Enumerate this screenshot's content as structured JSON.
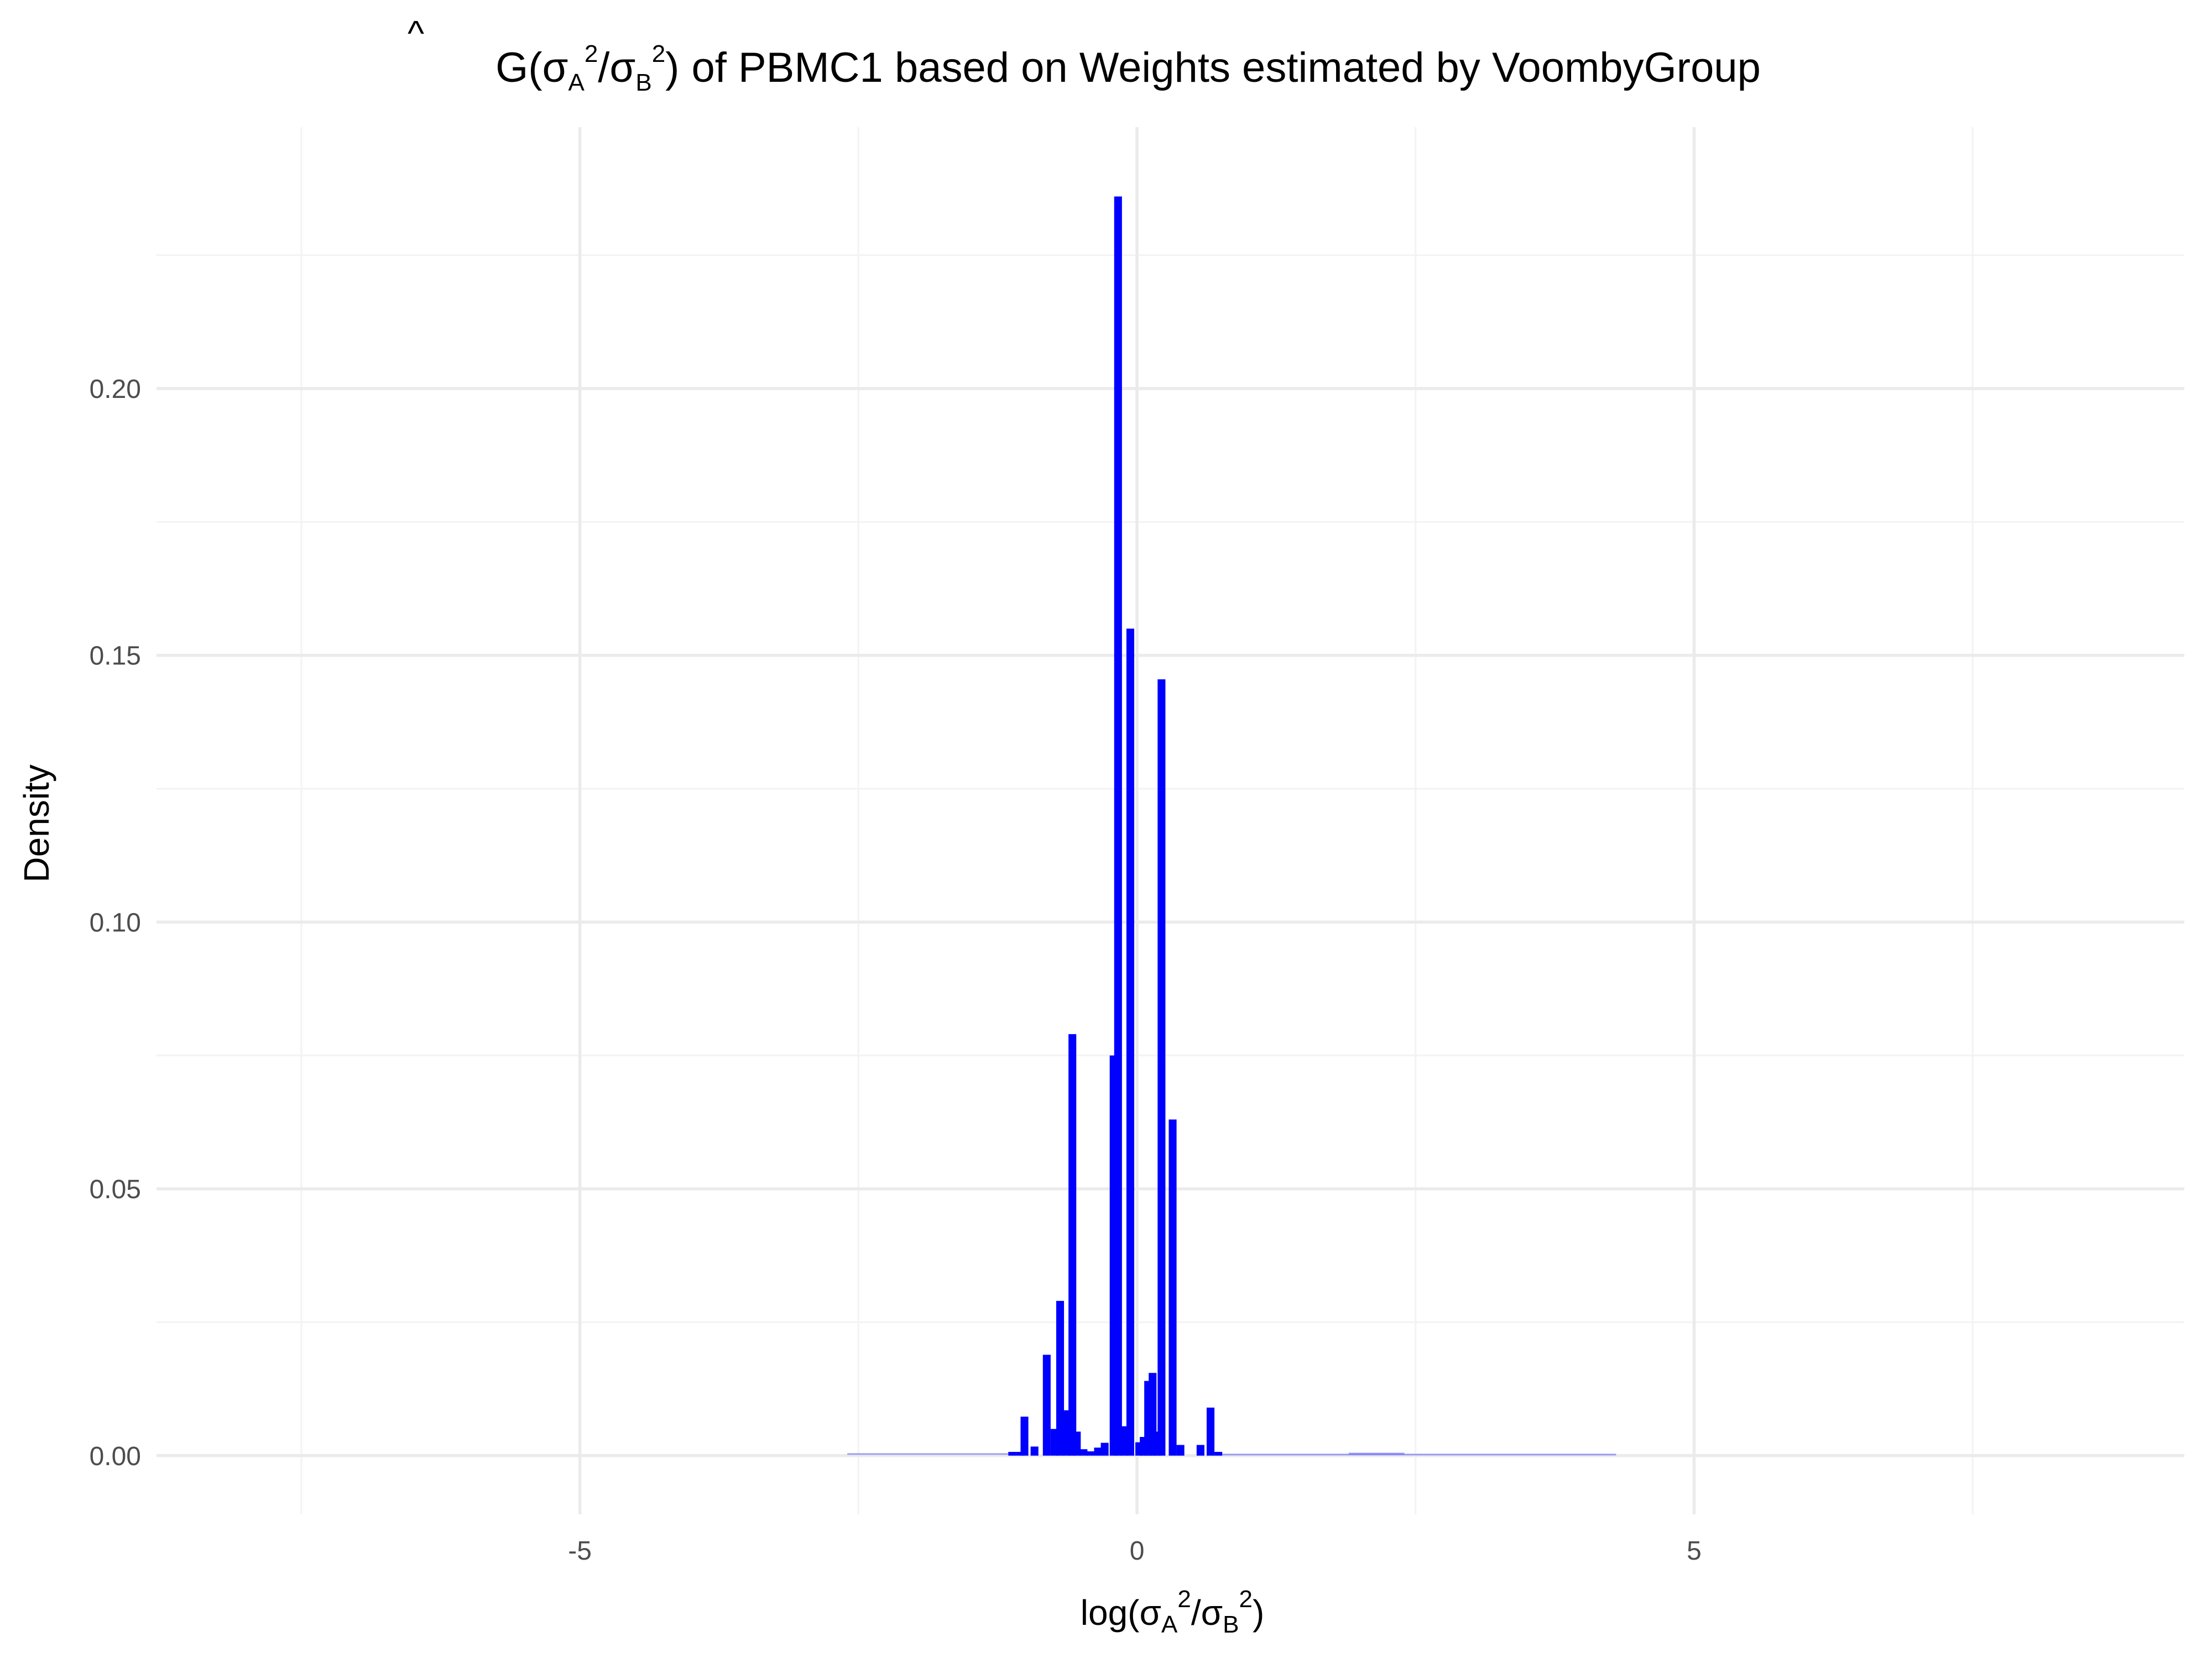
{
  "chart_data": {
    "type": "bar",
    "title": {
      "hat": "^",
      "g": "G",
      "paren_open": "(",
      "sigma": "σ",
      "sub_a": "A",
      "sup_2": "2",
      "slash": "/",
      "sub_b": "B",
      "paren_close": ")",
      "text": "of PBMC1 based on Weights estimated by VoombyGroup"
    },
    "xlabel": {
      "log": "log",
      "paren_open": "(",
      "sigma": "σ",
      "sub_a": "A",
      "sup_2": "2",
      "slash": "/",
      "sub_b": "B",
      "paren_close": ")"
    },
    "ylabel": "Density",
    "xlim": [
      -8.8,
      9.4
    ],
    "ylim": [
      -0.011,
      0.249
    ],
    "x_ticks": [
      -5,
      0,
      5
    ],
    "x_tick_labels": [
      "-5",
      "0",
      "5"
    ],
    "y_ticks": [
      0.0,
      0.05,
      0.1,
      0.15,
      0.2
    ],
    "y_tick_labels": [
      "0.00",
      "0.05",
      "0.10",
      "0.15",
      "0.20"
    ],
    "grid": true,
    "bar_color": "#0000ff",
    "bar_width": 0.07,
    "bars": [
      {
        "x": -1.12,
        "y": 0.0007
      },
      {
        "x": -1.05,
        "y": 0.0007
      },
      {
        "x": -1.01,
        "y": 0.0073
      },
      {
        "x": -0.92,
        "y": 0.0017
      },
      {
        "x": -0.81,
        "y": 0.0189
      },
      {
        "x": -0.74,
        "y": 0.005
      },
      {
        "x": -0.69,
        "y": 0.029
      },
      {
        "x": -0.63,
        "y": 0.0085
      },
      {
        "x": -0.58,
        "y": 0.079
      },
      {
        "x": -0.54,
        "y": 0.0045
      },
      {
        "x": -0.48,
        "y": 0.0012
      },
      {
        "x": -0.42,
        "y": 0.0008
      },
      {
        "x": -0.35,
        "y": 0.0015
      },
      {
        "x": -0.29,
        "y": 0.0024
      },
      {
        "x": -0.21,
        "y": 0.075
      },
      {
        "x": -0.17,
        "y": 0.236
      },
      {
        "x": -0.12,
        "y": 0.0055
      },
      {
        "x": -0.06,
        "y": 0.155
      },
      {
        "x": 0.02,
        "y": 0.0025
      },
      {
        "x": 0.06,
        "y": 0.0035
      },
      {
        "x": 0.1,
        "y": 0.014
      },
      {
        "x": 0.14,
        "y": 0.0155
      },
      {
        "x": 0.18,
        "y": 0.0045
      },
      {
        "x": 0.22,
        "y": 0.1455
      },
      {
        "x": 0.32,
        "y": 0.063
      },
      {
        "x": 0.39,
        "y": 0.002
      },
      {
        "x": 0.57,
        "y": 0.002
      },
      {
        "x": 0.66,
        "y": 0.009
      },
      {
        "x": 0.73,
        "y": 0.0007
      }
    ],
    "tail": [
      {
        "x1": -2.6,
        "x2": -1.15,
        "y": 0.0003
      },
      {
        "x1": 0.75,
        "x2": 4.3,
        "y": 0.0002
      },
      {
        "x1": 1.9,
        "x2": 2.4,
        "y": 0.0004
      }
    ]
  }
}
